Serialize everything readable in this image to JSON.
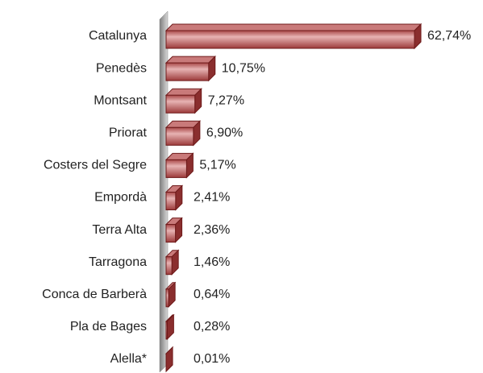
{
  "chart_data": {
    "type": "bar",
    "orientation": "horizontal",
    "categories": [
      "Catalunya",
      "Penedès",
      "Montsant",
      "Priorat",
      "Costers del Segre",
      "Empordà",
      "Terra Alta",
      "Tarragona",
      "Conca de Barberà",
      "Pla de Bages",
      "Alella*"
    ],
    "values": [
      62.74,
      10.75,
      7.27,
      6.9,
      5.17,
      2.41,
      2.36,
      1.46,
      0.64,
      0.28,
      0.01
    ],
    "value_labels": [
      "62,74%",
      "10,75%",
      "7,27%",
      "6,90%",
      "5,17%",
      "2,41%",
      "2,36%",
      "1,46%",
      "0,64%",
      "0,28%",
      "0,01%"
    ],
    "color": "#b85a5a"
  }
}
